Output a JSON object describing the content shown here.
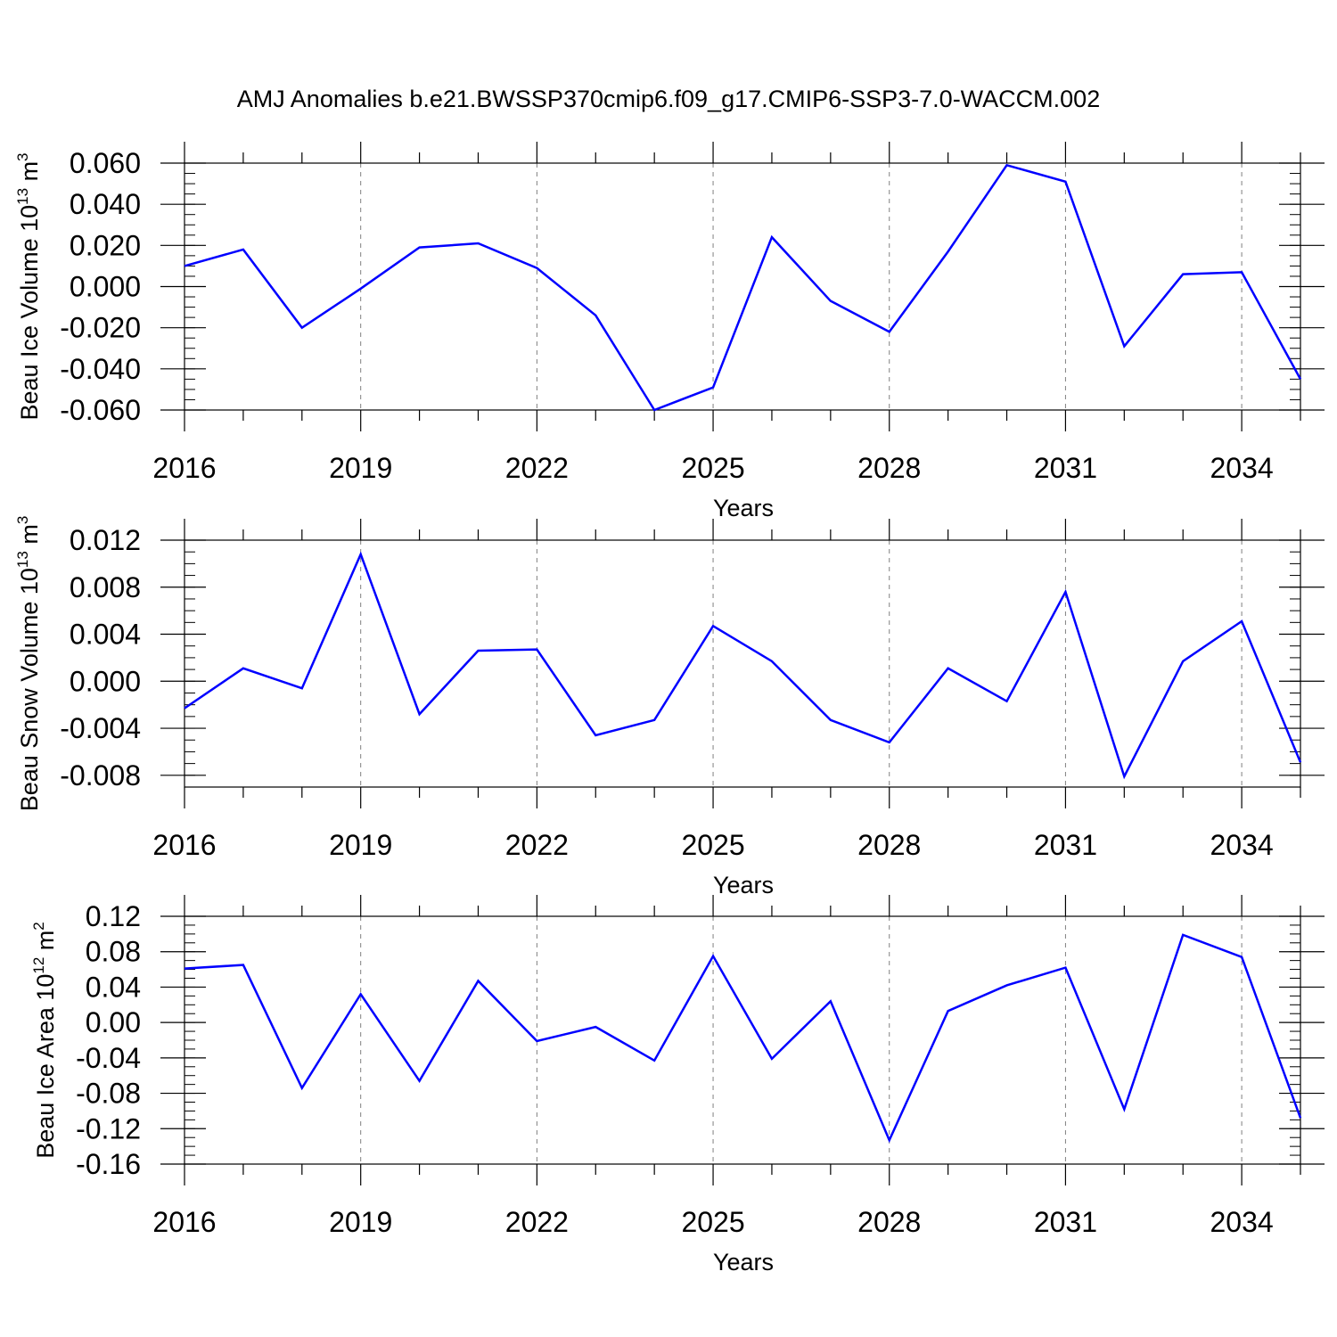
{
  "title": "AMJ Anomalies b.e21.BWSSP370cmip6.f09_g17.CMIP6-SSP3-7.0-WACCM.002",
  "colors": {
    "line": "#0000ff",
    "axis": "#000000",
    "grid": "#808080"
  },
  "chart_data": [
    {
      "type": "line",
      "ylabel": {
        "text": "Beau Ice Volume 10",
        "sup": "13",
        "unit": " m",
        "unit_sup": "3"
      },
      "xlabel": "Years",
      "x": [
        2016,
        2017,
        2018,
        2019,
        2020,
        2021,
        2022,
        2023,
        2024,
        2025,
        2026,
        2027,
        2028,
        2029,
        2030,
        2031,
        2032,
        2033,
        2034,
        2035
      ],
      "values": [
        0.01,
        0.018,
        -0.02,
        -0.001,
        0.019,
        0.021,
        0.009,
        -0.014,
        -0.06,
        -0.049,
        0.024,
        -0.007,
        -0.022,
        0.017,
        0.059,
        0.051,
        -0.029,
        0.006,
        0.007,
        -0.045
      ],
      "xlim": [
        2016,
        2035
      ],
      "ylim": [
        -0.06,
        0.06
      ],
      "xticks": [
        2016,
        2019,
        2022,
        2025,
        2028,
        2031,
        2034
      ],
      "xtick_labels": [
        "2016",
        "2019",
        "2022",
        "2025",
        "2028",
        "2031",
        "2034"
      ],
      "yticks": [
        0.06,
        0.04,
        0.02,
        0.0,
        -0.02,
        -0.04,
        -0.06
      ],
      "ytick_labels": [
        "0.060",
        "0.040",
        "0.020",
        "0.000",
        "-0.020",
        "-0.040",
        "-0.060"
      ],
      "minor_y_step": 0.005,
      "grid": "vertical dashed at major x ticks"
    },
    {
      "type": "line",
      "ylabel": {
        "text": "Beau Snow Volume 10",
        "sup": "13",
        "unit": " m",
        "unit_sup": "3"
      },
      "xlabel": "Years",
      "x": [
        2016,
        2017,
        2018,
        2019,
        2020,
        2021,
        2022,
        2023,
        2024,
        2025,
        2026,
        2027,
        2028,
        2029,
        2030,
        2031,
        2032,
        2033,
        2034,
        2035
      ],
      "values": [
        -0.0023,
        0.0011,
        -0.0006,
        0.0108,
        -0.0028,
        0.0026,
        0.0027,
        -0.0046,
        -0.0033,
        0.0047,
        0.0017,
        -0.0033,
        -0.0052,
        0.0011,
        -0.0017,
        0.0076,
        -0.0081,
        0.0017,
        0.0051,
        -0.0069
      ],
      "xlim": [
        2016,
        2035
      ],
      "ylim": [
        -0.009,
        0.012
      ],
      "xticks": [
        2016,
        2019,
        2022,
        2025,
        2028,
        2031,
        2034
      ],
      "xtick_labels": [
        "2016",
        "2019",
        "2022",
        "2025",
        "2028",
        "2031",
        "2034"
      ],
      "yticks": [
        0.012,
        0.008,
        0.004,
        0.0,
        -0.004,
        -0.008
      ],
      "ytick_labels": [
        "0.012",
        "0.008",
        "0.004",
        "0.000",
        "-0.004",
        "-0.008"
      ],
      "minor_y_step": 0.001,
      "grid": "vertical dashed at major x ticks"
    },
    {
      "type": "line",
      "ylabel": {
        "text": "Beau Ice Area 10",
        "sup": "12",
        "unit": " m",
        "unit_sup": "2"
      },
      "xlabel": "Years",
      "x": [
        2016,
        2017,
        2018,
        2019,
        2020,
        2021,
        2022,
        2023,
        2024,
        2025,
        2026,
        2027,
        2028,
        2029,
        2030,
        2031,
        2032,
        2033,
        2034,
        2035
      ],
      "values": [
        0.061,
        0.065,
        -0.074,
        0.032,
        -0.066,
        0.047,
        -0.021,
        -0.005,
        -0.043,
        0.075,
        -0.041,
        0.024,
        -0.133,
        0.013,
        0.042,
        0.062,
        -0.098,
        0.099,
        0.074,
        -0.108
      ],
      "xlim": [
        2016,
        2035
      ],
      "ylim": [
        -0.16,
        0.12
      ],
      "xticks": [
        2016,
        2019,
        2022,
        2025,
        2028,
        2031,
        2034
      ],
      "xtick_labels": [
        "2016",
        "2019",
        "2022",
        "2025",
        "2028",
        "2031",
        "2034"
      ],
      "yticks": [
        0.12,
        0.08,
        0.04,
        0.0,
        -0.04,
        -0.08,
        -0.12,
        -0.16
      ],
      "ytick_labels": [
        "0.12",
        "0.08",
        "0.04",
        "0.00",
        "-0.04",
        "-0.08",
        "-0.12",
        "-0.16"
      ],
      "minor_y_step": 0.01,
      "grid": "vertical dashed at major x ticks"
    }
  ]
}
